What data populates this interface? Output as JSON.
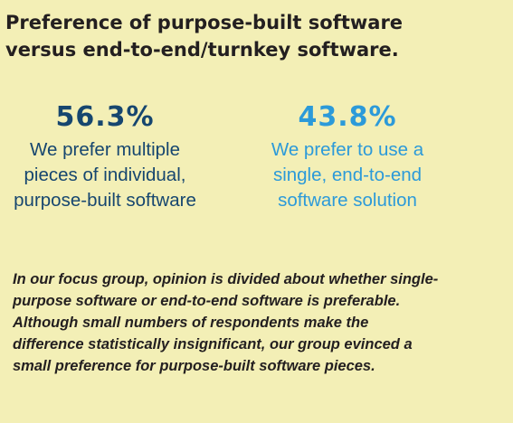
{
  "title_line1": "Preference of purpose-built software",
  "title_line2": "versus end-to-end/turnkey software.",
  "chart_data": {
    "type": "table",
    "categories": [
      "Purpose-built",
      "End-to-end"
    ],
    "values": [
      56.3,
      43.8
    ],
    "items": [
      {
        "value": "56.3%",
        "desc_lines": [
          "We prefer multiple",
          "pieces of individual,",
          "purpose-built software"
        ],
        "color": "#16466f"
      },
      {
        "value": "43.8%",
        "desc_lines": [
          "We prefer to use a",
          "single, end-to-end",
          "software solution"
        ],
        "color": "#2c9ad9"
      }
    ]
  },
  "note_lines": [
    "In our focus group, opinion is divided about whether single-",
    "purpose software or end-to-end software is preferable.",
    "Although small numbers of respondents make the",
    "difference statistically insignificant, our group evinced a",
    "small preference for purpose-built software pieces."
  ],
  "colors": {
    "background": "#f3efb6",
    "title": "#231f20"
  }
}
